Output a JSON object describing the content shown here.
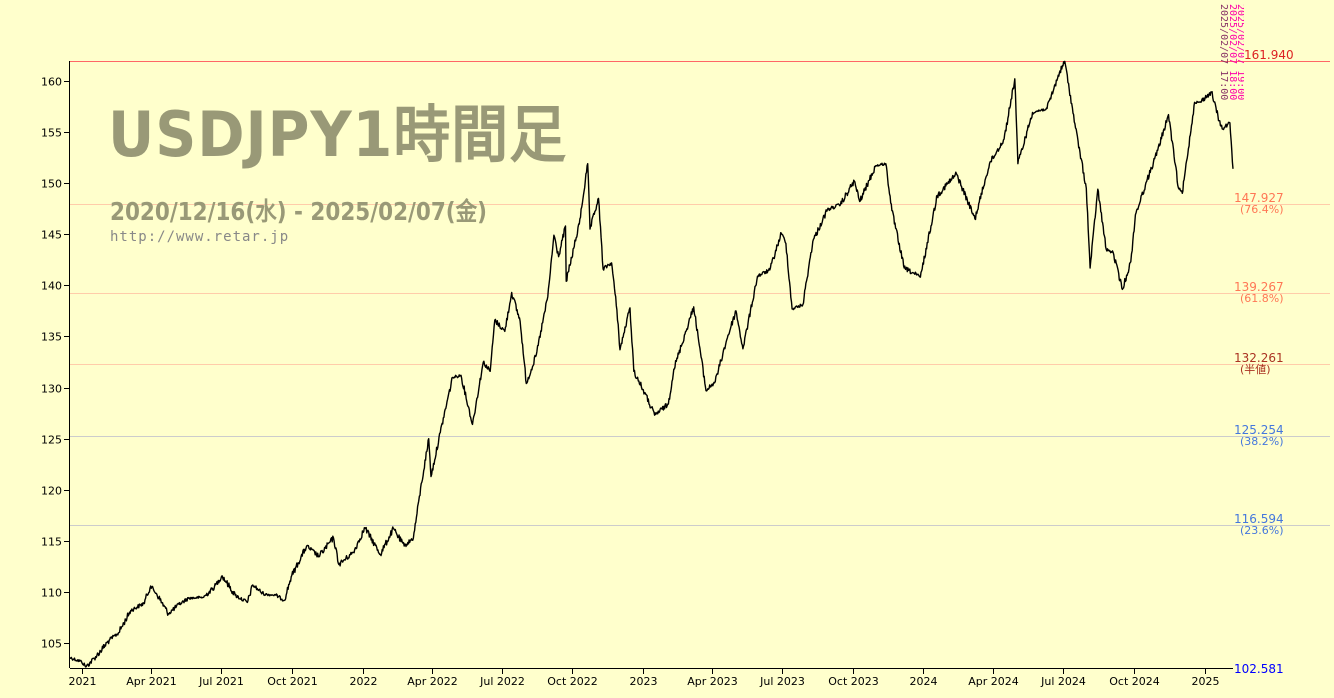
{
  "title": {
    "main": "USDJPY1時間足",
    "range": "2020/12/16(水) - 2025/02/07(金)",
    "url": "http://www.retar.jp"
  },
  "colors": {
    "background": "#ffffcc",
    "price_line": "#000000",
    "axis": "#000000",
    "high_line": "#ff6666",
    "fib_line_warm": "#ffccaa",
    "fib_line_cool": "#cccccc",
    "high_text": "#dd2222",
    "warm_text": "#ff7755",
    "mid_text": "#aa3322",
    "cool_text": "#4477dd",
    "low_text": "#0000ff",
    "marker_pink": "#ff00aa",
    "marker_dark": "#883366"
  },
  "fib_levels": [
    {
      "price": 161.94,
      "label": "161.940",
      "pct": "",
      "tone": "high"
    },
    {
      "price": 147.927,
      "label": "147.927",
      "pct": "(76.4%)",
      "tone": "warm"
    },
    {
      "price": 139.267,
      "label": "139.267",
      "pct": "(61.8%)",
      "tone": "warm"
    },
    {
      "price": 132.261,
      "label": "132.261",
      "pct": "(半値)",
      "tone": "mid"
    },
    {
      "price": 125.254,
      "label": "125.254",
      "pct": "(38.2%)",
      "tone": "cool"
    },
    {
      "price": 116.594,
      "label": "116.594",
      "pct": "(23.6%)",
      "tone": "cool"
    },
    {
      "price": 102.581,
      "label": "102.581",
      "pct": "",
      "tone": "low"
    }
  ],
  "markers": {
    "vertical_texts": [
      "2025/02/07 17:00",
      "2025/02/07 18:00",
      "2025/02/07 19:00"
    ]
  },
  "chart_data": {
    "type": "line",
    "title": "USDJPY1時間足",
    "subtitle": "2020/12/16(水) - 2025/02/07(金)",
    "xlabel": "",
    "ylabel": "",
    "grid": false,
    "legend": "none",
    "xlim": [
      "2020-12-16",
      "2025-02-07"
    ],
    "ylim": [
      102.581,
      161.94
    ],
    "y_ticks": [
      105,
      110,
      115,
      120,
      125,
      130,
      135,
      140,
      145,
      150,
      155,
      160
    ],
    "x_ticks": [
      {
        "date": "2021-01-01",
        "label": "2021"
      },
      {
        "date": "2021-04-01",
        "label": "Apr 2021"
      },
      {
        "date": "2021-07-01",
        "label": "Jul 2021"
      },
      {
        "date": "2021-10-01",
        "label": "Oct 2021"
      },
      {
        "date": "2022-01-01",
        "label": "2022"
      },
      {
        "date": "2022-04-01",
        "label": "Apr 2022"
      },
      {
        "date": "2022-07-01",
        "label": "Jul 2022"
      },
      {
        "date": "2022-10-01",
        "label": "Oct 2022"
      },
      {
        "date": "2023-01-01",
        "label": "2023"
      },
      {
        "date": "2023-04-01",
        "label": "Apr 2023"
      },
      {
        "date": "2023-07-01",
        "label": "Jul 2023"
      },
      {
        "date": "2023-10-01",
        "label": "Oct 2023"
      },
      {
        "date": "2024-01-01",
        "label": "2024"
      },
      {
        "date": "2024-04-01",
        "label": "Apr 2024"
      },
      {
        "date": "2024-07-01",
        "label": "Jul 2024"
      },
      {
        "date": "2024-10-01",
        "label": "Oct 2024"
      },
      {
        "date": "2025-01-01",
        "label": "2025"
      }
    ],
    "series": [
      {
        "points": [
          [
            "2020-12-16",
            103.6
          ],
          [
            "2020-12-31",
            103.2
          ],
          [
            "2021-01-06",
            102.7
          ],
          [
            "2021-01-20",
            103.8
          ],
          [
            "2021-02-05",
            105.3
          ],
          [
            "2021-02-17",
            106.0
          ],
          [
            "2021-03-05",
            108.2
          ],
          [
            "2021-03-22",
            108.9
          ],
          [
            "2021-03-31",
            110.6
          ],
          [
            "2021-04-08",
            109.8
          ],
          [
            "2021-04-23",
            107.9
          ],
          [
            "2021-05-07",
            108.8
          ],
          [
            "2021-05-19",
            109.4
          ],
          [
            "2021-06-08",
            109.5
          ],
          [
            "2021-06-22",
            110.5
          ],
          [
            "2021-07-02",
            111.6
          ],
          [
            "2021-07-19",
            109.7
          ],
          [
            "2021-08-04",
            109.0
          ],
          [
            "2021-08-11",
            110.7
          ],
          [
            "2021-08-25",
            109.8
          ],
          [
            "2021-09-10",
            109.7
          ],
          [
            "2021-09-21",
            109.2
          ],
          [
            "2021-09-30",
            111.5
          ],
          [
            "2021-10-20",
            114.5
          ],
          [
            "2021-11-05",
            113.5
          ],
          [
            "2021-11-24",
            115.3
          ],
          [
            "2021-12-01",
            112.7
          ],
          [
            "2021-12-20",
            113.9
          ],
          [
            "2022-01-04",
            116.3
          ],
          [
            "2022-01-24",
            113.7
          ],
          [
            "2022-02-10",
            116.2
          ],
          [
            "2022-02-24",
            114.5
          ],
          [
            "2022-03-08",
            115.3
          ],
          [
            "2022-03-15",
            118.9
          ],
          [
            "2022-03-28",
            125.0
          ],
          [
            "2022-03-31",
            121.3
          ],
          [
            "2022-04-12",
            125.6
          ],
          [
            "2022-04-28",
            131.0
          ],
          [
            "2022-05-09",
            131.2
          ],
          [
            "2022-05-24",
            126.4
          ],
          [
            "2022-06-07",
            132.5
          ],
          [
            "2022-06-16",
            131.6
          ],
          [
            "2022-06-22",
            136.6
          ],
          [
            "2022-07-05",
            135.5
          ],
          [
            "2022-07-14",
            139.3
          ],
          [
            "2022-07-25",
            136.5
          ],
          [
            "2022-08-02",
            130.4
          ],
          [
            "2022-08-15",
            133.2
          ],
          [
            "2022-08-30",
            138.9
          ],
          [
            "2022-09-07",
            144.9
          ],
          [
            "2022-09-13",
            142.8
          ],
          [
            "2022-09-22",
            145.8
          ],
          [
            "2022-09-23",
            140.4
          ],
          [
            "2022-10-10",
            146.0
          ],
          [
            "2022-10-21",
            151.9
          ],
          [
            "2022-10-24",
            145.5
          ],
          [
            "2022-11-04",
            148.5
          ],
          [
            "2022-11-10",
            141.6
          ],
          [
            "2022-11-21",
            142.2
          ],
          [
            "2022-11-28",
            137.6
          ],
          [
            "2022-12-02",
            133.7
          ],
          [
            "2022-12-15",
            137.8
          ],
          [
            "2022-12-20",
            131.6
          ],
          [
            "2023-01-03",
            129.5
          ],
          [
            "2023-01-16",
            127.3
          ],
          [
            "2023-02-03",
            128.4
          ],
          [
            "2023-02-10",
            131.8
          ],
          [
            "2023-03-08",
            137.9
          ],
          [
            "2023-03-24",
            129.7
          ],
          [
            "2023-04-05",
            130.6
          ],
          [
            "2023-04-20",
            134.7
          ],
          [
            "2023-05-02",
            137.5
          ],
          [
            "2023-05-11",
            133.8
          ],
          [
            "2023-05-30",
            140.9
          ],
          [
            "2023-06-15",
            141.5
          ],
          [
            "2023-06-30",
            145.1
          ],
          [
            "2023-07-06",
            144.1
          ],
          [
            "2023-07-14",
            137.7
          ],
          [
            "2023-07-28",
            138.1
          ],
          [
            "2023-08-10",
            144.3
          ],
          [
            "2023-08-29",
            147.4
          ],
          [
            "2023-09-15",
            147.9
          ],
          [
            "2023-10-03",
            150.2
          ],
          [
            "2023-10-10",
            148.2
          ],
          [
            "2023-10-31",
            151.7
          ],
          [
            "2023-11-13",
            151.9
          ],
          [
            "2023-11-21",
            147.3
          ],
          [
            "2023-12-07",
            141.7
          ],
          [
            "2023-12-28",
            140.8
          ],
          [
            "2024-01-19",
            148.8
          ],
          [
            "2024-02-13",
            150.9
          ],
          [
            "2024-03-08",
            146.5
          ],
          [
            "2024-03-27",
            151.9
          ],
          [
            "2024-04-15",
            154.3
          ],
          [
            "2024-04-29",
            160.2
          ],
          [
            "2024-05-03",
            151.9
          ],
          [
            "2024-05-22",
            156.9
          ],
          [
            "2024-06-10",
            157.3
          ],
          [
            "2024-06-26",
            160.8
          ],
          [
            "2024-07-03",
            161.9
          ],
          [
            "2024-07-17",
            155.4
          ],
          [
            "2024-07-31",
            149.5
          ],
          [
            "2024-08-05",
            141.7
          ],
          [
            "2024-08-15",
            149.4
          ],
          [
            "2024-08-26",
            143.5
          ],
          [
            "2024-09-04",
            143.2
          ],
          [
            "2024-09-16",
            139.6
          ],
          [
            "2024-09-27",
            142.3
          ],
          [
            "2024-10-03",
            146.9
          ],
          [
            "2024-10-16",
            149.8
          ],
          [
            "2024-11-01",
            153.2
          ],
          [
            "2024-11-15",
            156.7
          ],
          [
            "2024-11-28",
            149.5
          ],
          [
            "2024-12-03",
            149.0
          ],
          [
            "2024-12-19",
            157.9
          ],
          [
            "2024-12-26",
            157.9
          ],
          [
            "2025-01-10",
            158.9
          ],
          [
            "2025-01-20",
            156.1
          ],
          [
            "2025-01-24",
            155.3
          ],
          [
            "2025-02-03",
            155.9
          ],
          [
            "2025-02-07",
            151.4
          ]
        ]
      }
    ]
  }
}
